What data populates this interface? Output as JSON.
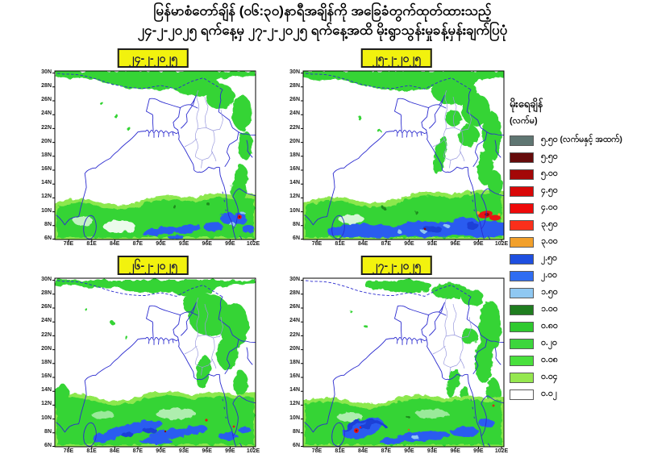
{
  "title": {
    "line1": "မြန်မာစံတော်ချိန် (၀၆:၃၀)နာရီအချိန်ကို အခြေခံတွက်ထုတ်ထားသည့်",
    "line2": "၂၄-၂-၂၀၂၅ ရက်နေ့မှ ၂၇-၂-၂၀၂၅ ရက်နေ့အထိ မိုးရွာသွန်းမှုခန့်မှန်းချက်ပြပုံ"
  },
  "panels": [
    {
      "date": "၂၄-၂-၂၀၂၅"
    },
    {
      "date": "၂၅-၂-၂၀၂၅"
    },
    {
      "date": "၂၆-၂-၂၀၂၅"
    },
    {
      "date": "၂၇-၂-၂၀၂၅"
    }
  ],
  "map_axes": {
    "lat": [
      "30N",
      "28N",
      "26N",
      "24N",
      "22N",
      "20N",
      "18N",
      "16N",
      "14N",
      "12N",
      "10N",
      "8N",
      "6N"
    ],
    "lon": [
      "78E",
      "81E",
      "84E",
      "87E",
      "90E",
      "93E",
      "96E",
      "99E",
      "102E"
    ]
  },
  "legend": {
    "title": "မိုးရေချိန်",
    "unit": "(လက်မ)",
    "items": [
      {
        "label": "၅.၅၀ (လက်မနှင့် အထက်)",
        "value": "5.50+",
        "color": "#5f7672"
      },
      {
        "label": "၅.၅၀",
        "value": "5.50",
        "color": "#650b0b"
      },
      {
        "label": "၅.၀၀",
        "value": "5.00",
        "color": "#a40808"
      },
      {
        "label": "၄.၅၀",
        "value": "4.50",
        "color": "#d90707"
      },
      {
        "label": "၄.၀၀",
        "value": "4.00",
        "color": "#ee0a0a"
      },
      {
        "label": "၃.၅၀",
        "value": "3.50",
        "color": "#fa2f1b"
      },
      {
        "label": "၃.၀၀",
        "value": "3.00",
        "color": "#f2a02b"
      },
      {
        "label": "၂.၅၀",
        "value": "2.50",
        "color": "#1e4fe0"
      },
      {
        "label": "၂.၀၀",
        "value": "2.00",
        "color": "#2f6df2"
      },
      {
        "label": "၁.၅၀",
        "value": "1.50",
        "color": "#8fc8f2"
      },
      {
        "label": "၁.၀၀",
        "value": "1.00",
        "color": "#1f7d1f"
      },
      {
        "label": "၀.၈၀",
        "value": "0.80",
        "color": "#2fc92f"
      },
      {
        "label": "၀.၂၀",
        "value": "0.20",
        "color": "#3cd63c"
      },
      {
        "label": "၀.၀၈",
        "value": "0.08",
        "color": "#49e03c"
      },
      {
        "label": "၀.၀၄",
        "value": "0.04",
        "color": "#95e74f"
      },
      {
        "label": "၀.၀၂",
        "value": "0.02",
        "color": "#ffffff"
      }
    ]
  },
  "colors": {
    "rain_light_green": "#8ce84e",
    "rain_green": "#35d435",
    "rain_dark_green": "#1f8c1f",
    "rain_blue": "#2b5cf0",
    "rain_dark_blue": "#1a3fd6",
    "rain_light_blue": "#90c8f0",
    "rain_red": "#e81414",
    "rain_dark_red": "#8d0707",
    "rain_orange": "#f2a02b",
    "coastline": "#2b2bcf",
    "state_border": "#9a9ade",
    "date_label_bg": "#f2f20e"
  }
}
